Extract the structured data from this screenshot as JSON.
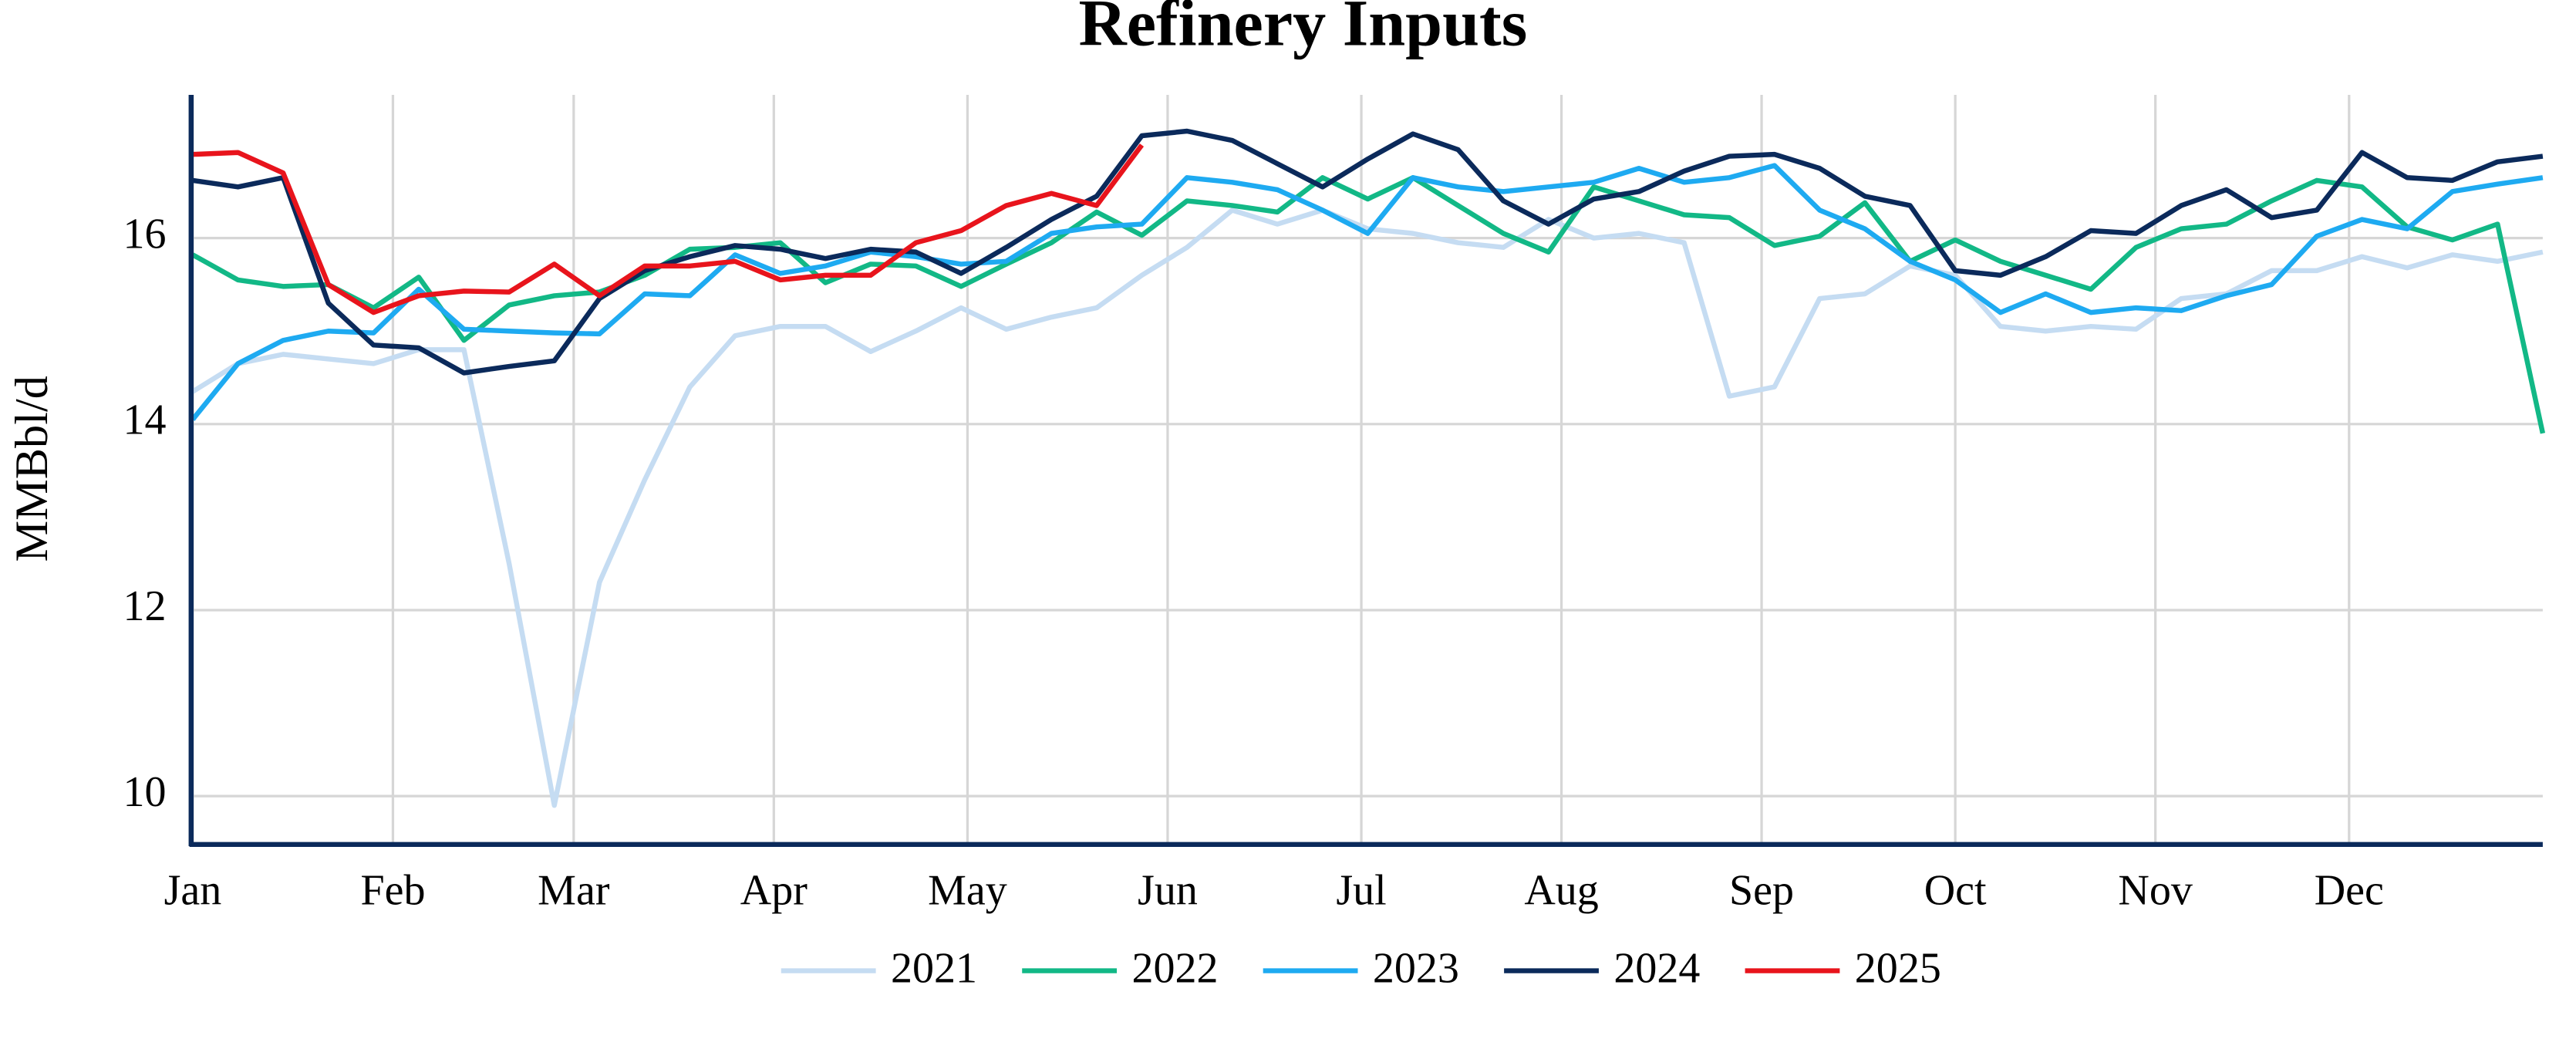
{
  "chart_data": {
    "type": "line",
    "title": "Refinery Inputs",
    "y_label": "MMBbl/d",
    "x": [
      1,
      8,
      15,
      22,
      29,
      36,
      43,
      50,
      57,
      64,
      71,
      78,
      85,
      92,
      99,
      106,
      113,
      120,
      127,
      134,
      141,
      148,
      155,
      162,
      169,
      176,
      183,
      190,
      197,
      204,
      211,
      218,
      225,
      232,
      239,
      246,
      253,
      260,
      267,
      274,
      281,
      288,
      295,
      302,
      309,
      316,
      323,
      330,
      337,
      344,
      351,
      358,
      365
    ],
    "xlim": [
      1,
      365
    ],
    "xticks": [
      {
        "value": 1,
        "label": "Jan"
      },
      {
        "value": 32,
        "label": "Feb"
      },
      {
        "value": 60,
        "label": "Mar"
      },
      {
        "value": 91,
        "label": "Apr"
      },
      {
        "value": 121,
        "label": "May"
      },
      {
        "value": 152,
        "label": "Jun"
      },
      {
        "value": 182,
        "label": "Jul"
      },
      {
        "value": 213,
        "label": "Aug"
      },
      {
        "value": 244,
        "label": "Sep"
      },
      {
        "value": 274,
        "label": "Oct"
      },
      {
        "value": 305,
        "label": "Nov"
      },
      {
        "value": 335,
        "label": "Dec"
      }
    ],
    "ylim": [
      9.48,
      17.54
    ],
    "yticks": [
      10,
      12,
      14,
      16
    ],
    "grid": true,
    "legend": "bottom",
    "series": [
      {
        "name": "2021",
        "color": "#c5dcf2",
        "values": [
          14.35,
          14.65,
          14.75,
          14.7,
          14.65,
          14.8,
          14.8,
          12.5,
          9.9,
          12.3,
          13.4,
          14.4,
          14.95,
          15.05,
          15.05,
          14.78,
          15.0,
          15.25,
          15.02,
          15.15,
          15.25,
          15.6,
          15.9,
          16.3,
          16.15,
          16.3,
          16.1,
          16.05,
          15.95,
          15.9,
          16.2,
          16.0,
          16.05,
          15.95,
          14.3,
          14.4,
          15.35,
          15.4,
          15.7,
          15.6,
          15.05,
          15.0,
          15.05,
          15.02,
          15.35,
          15.4,
          15.65,
          15.65,
          15.8,
          15.68,
          15.82,
          15.75,
          15.85
        ]
      },
      {
        "name": "2022",
        "color": "#12b886",
        "values": [
          15.82,
          15.55,
          15.48,
          15.5,
          15.25,
          15.58,
          14.9,
          15.28,
          15.38,
          15.42,
          15.6,
          15.88,
          15.9,
          15.95,
          15.52,
          15.72,
          15.7,
          15.48,
          15.72,
          15.95,
          16.28,
          16.03,
          16.4,
          16.35,
          16.28,
          16.65,
          16.42,
          16.65,
          16.35,
          16.05,
          15.85,
          16.55,
          16.4,
          16.25,
          16.22,
          15.92,
          16.02,
          16.38,
          15.75,
          15.98,
          15.75,
          15.6,
          15.45,
          15.9,
          16.1,
          16.15,
          16.4,
          16.62,
          16.55,
          16.12,
          15.98,
          16.15,
          13.9
        ]
      },
      {
        "name": "2023",
        "color": "#1eaaf1",
        "values": [
          14.05,
          14.65,
          14.9,
          15.0,
          14.98,
          15.45,
          15.02,
          15.0,
          14.98,
          14.97,
          15.4,
          15.38,
          15.82,
          15.62,
          15.7,
          15.85,
          15.8,
          15.72,
          15.75,
          16.05,
          16.12,
          16.15,
          16.65,
          16.6,
          16.52,
          16.3,
          16.05,
          16.65,
          16.55,
          16.5,
          16.55,
          16.6,
          16.75,
          16.6,
          16.65,
          16.78,
          16.3,
          16.1,
          15.75,
          15.55,
          15.2,
          15.4,
          15.2,
          15.25,
          15.22,
          15.38,
          15.5,
          16.02,
          16.2,
          16.1,
          16.5,
          16.58,
          16.65
        ]
      },
      {
        "name": "2024",
        "color": "#0b2a5b",
        "values": [
          16.62,
          16.55,
          16.65,
          15.3,
          14.85,
          14.82,
          14.55,
          14.62,
          14.68,
          15.35,
          15.65,
          15.8,
          15.92,
          15.88,
          15.78,
          15.88,
          15.85,
          15.62,
          15.9,
          16.2,
          16.45,
          17.1,
          17.15,
          17.05,
          16.8,
          16.55,
          16.85,
          17.12,
          16.95,
          16.4,
          16.15,
          16.42,
          16.5,
          16.72,
          16.88,
          16.9,
          16.75,
          16.45,
          16.35,
          15.65,
          15.6,
          15.8,
          16.08,
          16.05,
          16.35,
          16.52,
          16.22,
          16.3,
          16.92,
          16.65,
          16.62,
          16.82,
          16.88
        ]
      },
      {
        "name": "2025",
        "color": "#e8141c",
        "values": [
          16.9,
          16.92,
          16.7,
          15.5,
          15.2,
          15.38,
          15.43,
          15.42,
          15.72,
          15.38,
          15.7,
          15.7,
          15.75,
          15.55,
          15.6,
          15.6,
          15.95,
          16.08,
          16.35,
          16.48,
          16.35,
          17.0,
          null,
          null,
          null,
          null,
          null,
          null,
          null,
          null,
          null,
          null,
          null,
          null,
          null,
          null,
          null,
          null,
          null,
          null,
          null,
          null,
          null,
          null,
          null,
          null,
          null,
          null,
          null,
          null,
          null,
          null,
          null
        ]
      }
    ]
  }
}
